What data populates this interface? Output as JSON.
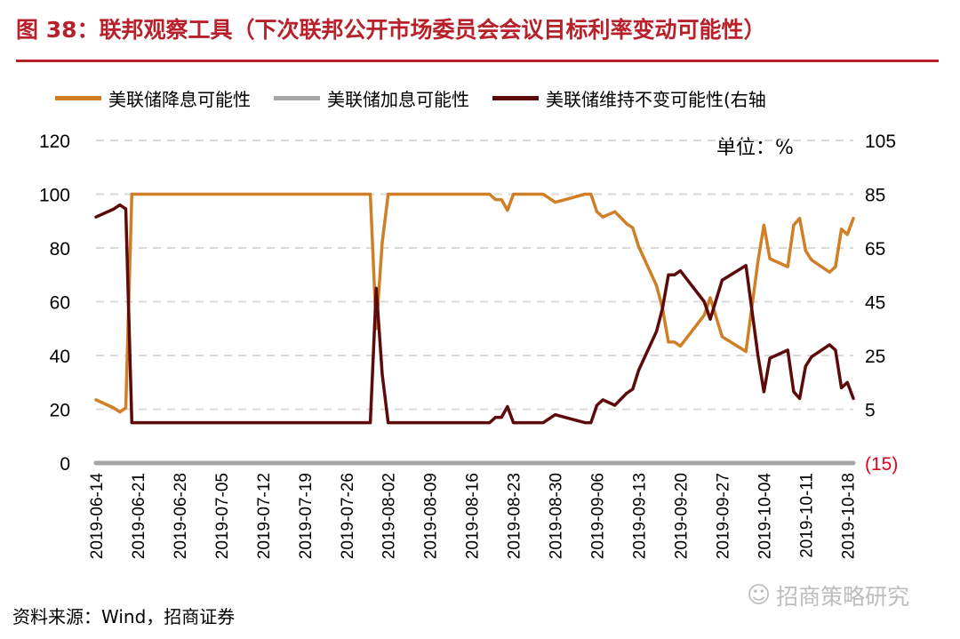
{
  "header": {
    "title": "图 38：联邦观察工具（下次联邦公开市场委员会会议目标利率变动可能性）"
  },
  "unit_label": "单位：%",
  "source_text": "资料来源：Wind，招商证券",
  "watermark_text": "招商策略研究",
  "watermark_icon": "wechat-icon",
  "colors": {
    "accent": "#b8202a",
    "cut": "#d07f26",
    "hike": "#a6a6a6",
    "hold": "#5c0a0a",
    "grid": "#d9d9d9"
  },
  "chart_data": {
    "type": "line",
    "legend_position": "top",
    "grid": true,
    "x_tick_labels": [
      "2019-06-14",
      "2019-06-21",
      "2019-06-28",
      "2019-07-05",
      "2019-07-12",
      "2019-07-19",
      "2019-07-26",
      "2019-08-02",
      "2019-08-09",
      "2019-08-16",
      "2019-08-23",
      "2019-08-30",
      "2019-09-06",
      "2019-09-13",
      "2019-09-20",
      "2019-09-27",
      "2019-10-04",
      "2019-10-11",
      "2019-10-18"
    ],
    "y_left": {
      "ticks": [
        "0",
        "20",
        "40",
        "60",
        "80",
        "100",
        "120"
      ],
      "range": [
        0,
        120
      ]
    },
    "y_right": {
      "ticks": [
        "(15)",
        "5",
        "25",
        "45",
        "65",
        "85",
        "105"
      ],
      "range": [
        -15,
        105
      ]
    },
    "series": [
      {
        "name": "美联储降息可能性",
        "axis": "left",
        "color": "#d07f26",
        "points": [
          [
            "2019-06-14",
            23.5
          ],
          [
            "2019-06-17",
            20.5
          ],
          [
            "2019-06-18",
            19
          ],
          [
            "2019-06-19",
            20.5
          ],
          [
            "2019-06-20",
            100
          ],
          [
            "2019-07-30",
            100
          ],
          [
            "2019-07-31",
            50
          ],
          [
            "2019-08-01",
            82
          ],
          [
            "2019-08-02",
            100
          ],
          [
            "2019-08-19",
            100
          ],
          [
            "2019-08-20",
            98
          ],
          [
            "2019-08-21",
            98
          ],
          [
            "2019-08-22",
            94
          ],
          [
            "2019-08-23",
            100
          ],
          [
            "2019-08-28",
            100
          ],
          [
            "2019-08-30",
            97
          ],
          [
            "2019-09-04",
            100
          ],
          [
            "2019-09-05",
            100
          ],
          [
            "2019-09-06",
            93.5
          ],
          [
            "2019-09-07",
            91.5
          ],
          [
            "2019-09-09",
            93.5
          ],
          [
            "2019-09-11",
            89
          ],
          [
            "2019-09-12",
            87.5
          ],
          [
            "2019-09-13",
            80.5
          ],
          [
            "2019-09-16",
            66
          ],
          [
            "2019-09-17",
            57.5
          ],
          [
            "2019-09-18",
            45
          ],
          [
            "2019-09-19",
            45
          ],
          [
            "2019-09-20",
            43.5
          ],
          [
            "2019-09-24",
            55
          ],
          [
            "2019-09-25",
            61.5
          ],
          [
            "2019-09-27",
            47
          ],
          [
            "2019-10-01",
            41.5
          ],
          [
            "2019-10-03",
            75
          ],
          [
            "2019-10-04",
            88.5
          ],
          [
            "2019-10-05",
            76
          ],
          [
            "2019-10-07",
            74
          ],
          [
            "2019-10-08",
            73
          ],
          [
            "2019-10-09",
            88.5
          ],
          [
            "2019-10-10",
            91
          ],
          [
            "2019-10-11",
            79
          ],
          [
            "2019-10-12",
            75.5
          ],
          [
            "2019-10-15",
            71
          ],
          [
            "2019-10-16",
            73
          ],
          [
            "2019-10-17",
            87
          ],
          [
            "2019-10-18",
            85
          ],
          [
            "2019-10-19",
            91
          ]
        ]
      },
      {
        "name": "美联储加息可能性",
        "axis": "left",
        "color": "#a6a6a6",
        "points": [
          [
            "2019-06-14",
            0
          ],
          [
            "2019-10-19",
            0
          ]
        ]
      },
      {
        "name": "美联储维持不变可能性(右轴",
        "axis": "right",
        "color": "#5c0a0a",
        "points": [
          [
            "2019-06-14",
            76.5
          ],
          [
            "2019-06-17",
            79.5
          ],
          [
            "2019-06-18",
            81
          ],
          [
            "2019-06-19",
            79.5
          ],
          [
            "2019-06-20",
            0
          ],
          [
            "2019-07-30",
            0
          ],
          [
            "2019-07-31",
            50
          ],
          [
            "2019-08-01",
            18
          ],
          [
            "2019-08-02",
            0
          ],
          [
            "2019-08-19",
            0
          ],
          [
            "2019-08-20",
            2
          ],
          [
            "2019-08-21",
            2
          ],
          [
            "2019-08-22",
            6
          ],
          [
            "2019-08-23",
            0
          ],
          [
            "2019-08-28",
            0
          ],
          [
            "2019-08-30",
            3
          ],
          [
            "2019-09-04",
            0
          ],
          [
            "2019-09-05",
            0
          ],
          [
            "2019-09-06",
            6.5
          ],
          [
            "2019-09-07",
            8.5
          ],
          [
            "2019-09-09",
            6.5
          ],
          [
            "2019-09-11",
            11
          ],
          [
            "2019-09-12",
            12.5
          ],
          [
            "2019-09-13",
            19.5
          ],
          [
            "2019-09-16",
            34
          ],
          [
            "2019-09-17",
            42.5
          ],
          [
            "2019-09-18",
            55
          ],
          [
            "2019-09-19",
            55
          ],
          [
            "2019-09-20",
            56.5
          ],
          [
            "2019-09-24",
            45
          ],
          [
            "2019-09-25",
            38.5
          ],
          [
            "2019-09-27",
            53
          ],
          [
            "2019-10-01",
            58.5
          ],
          [
            "2019-10-03",
            25
          ],
          [
            "2019-10-04",
            11.5
          ],
          [
            "2019-10-05",
            24
          ],
          [
            "2019-10-07",
            26
          ],
          [
            "2019-10-08",
            27
          ],
          [
            "2019-10-09",
            11.5
          ],
          [
            "2019-10-10",
            9
          ],
          [
            "2019-10-11",
            21
          ],
          [
            "2019-10-12",
            24.5
          ],
          [
            "2019-10-15",
            29
          ],
          [
            "2019-10-16",
            27
          ],
          [
            "2019-10-17",
            13
          ],
          [
            "2019-10-18",
            15
          ],
          [
            "2019-10-19",
            9
          ]
        ]
      }
    ]
  }
}
